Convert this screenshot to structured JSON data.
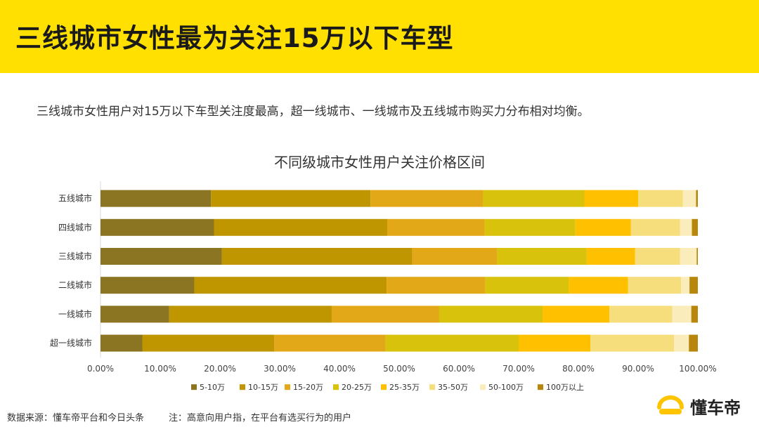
{
  "header": {
    "title": "三线城市女性最为关注15万以下车型"
  },
  "subtitle": "三线城市女性用户对15万以下车型关注度最高，超一线城市、一线城市及五线城市购买力分布相对均衡。",
  "footer": {
    "source": "数据来源：懂车帝平台和今日头条",
    "note": "注：高意向用户指，在平台有选买行为的用户",
    "brand": "懂车帝"
  },
  "colors": {
    "brand_yellow": "#FFE000",
    "series": [
      "#8B7422",
      "#BF9500",
      "#E3A817",
      "#D9C20C",
      "#FFC000",
      "#F7DE7C",
      "#FBEDBB",
      "#B8860B"
    ]
  },
  "chart_data": {
    "type": "bar",
    "orientation": "horizontal",
    "stacked": true,
    "title": "不同级城市女性用户关注价格区间",
    "categories": [
      "五线城市",
      "四线城市",
      "三线城市",
      "二线城市",
      "一线城市",
      "超一线城市"
    ],
    "series": [
      {
        "name": "5-10万",
        "values": [
          18.5,
          19.0,
          20.3,
          15.7,
          11.5,
          7.0
        ]
      },
      {
        "name": "10-15万",
        "values": [
          26.7,
          29.0,
          31.9,
          32.2,
          27.2,
          22.1
        ]
      },
      {
        "name": "15-20万",
        "values": [
          18.8,
          16.3,
          14.2,
          16.5,
          18.0,
          18.6
        ]
      },
      {
        "name": "20-25万",
        "values": [
          17.0,
          15.2,
          15.0,
          14.0,
          17.3,
          22.3
        ]
      },
      {
        "name": "25-35万",
        "values": [
          9.0,
          9.3,
          8.1,
          9.9,
          11.2,
          12.0
        ]
      },
      {
        "name": "35-50万",
        "values": [
          7.5,
          8.2,
          7.5,
          8.9,
          10.5,
          14.0
        ]
      },
      {
        "name": "50-100万",
        "values": [
          2.2,
          2.0,
          2.8,
          1.4,
          3.2,
          2.5
        ]
      },
      {
        "name": "100万以上",
        "values": [
          0.3,
          1.0,
          0.2,
          1.4,
          1.1,
          1.5
        ]
      }
    ],
    "x_ticks": [
      "0.00%",
      "10.00%",
      "20.00%",
      "30.00%",
      "40.00%",
      "50.00%",
      "60.00%",
      "70.00%",
      "80.00%",
      "90.00%",
      "100.00%"
    ],
    "xlim": [
      0,
      100
    ],
    "legend_position": "bottom"
  }
}
